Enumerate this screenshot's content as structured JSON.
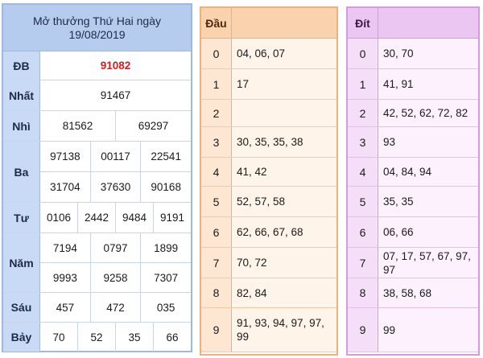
{
  "results": {
    "title_line1": "Mở thưởng Thứ Hai ngày",
    "title_line2": "19/08/2019",
    "prizes": [
      {
        "label": "ĐB",
        "rows": [
          [
            "91082"
          ]
        ],
        "special": true
      },
      {
        "label": "Nhất",
        "rows": [
          [
            "91467"
          ]
        ]
      },
      {
        "label": "Nhì",
        "rows": [
          [
            "81562",
            "69297"
          ]
        ]
      },
      {
        "label": "Ba",
        "rows": [
          [
            "97138",
            "00117",
            "22541"
          ],
          [
            "31704",
            "37630",
            "90168"
          ]
        ]
      },
      {
        "label": "Tư",
        "rows": [
          [
            "0106",
            "2442",
            "9484",
            "9191"
          ]
        ]
      },
      {
        "label": "Năm",
        "rows": [
          [
            "7194",
            "0797",
            "1899"
          ],
          [
            "9993",
            "9258",
            "7307"
          ]
        ]
      },
      {
        "label": "Sáu",
        "rows": [
          [
            "457",
            "472",
            "035"
          ]
        ]
      },
      {
        "label": "Bảy",
        "rows": [
          [
            "70",
            "52",
            "35",
            "66"
          ]
        ]
      }
    ]
  },
  "dau": {
    "header": "Đầu",
    "rows": [
      {
        "key": "0",
        "value": "04, 06, 07"
      },
      {
        "key": "1",
        "value": "17"
      },
      {
        "key": "2",
        "value": ""
      },
      {
        "key": "3",
        "value": "30, 35, 35, 38"
      },
      {
        "key": "4",
        "value": "41, 42"
      },
      {
        "key": "5",
        "value": "52, 57, 58"
      },
      {
        "key": "6",
        "value": "62, 66, 67, 68"
      },
      {
        "key": "7",
        "value": "70, 72"
      },
      {
        "key": "8",
        "value": "82, 84"
      },
      {
        "key": "9",
        "value": "91, 93, 94, 97, 97, 99"
      }
    ]
  },
  "dit": {
    "header": "Đít",
    "rows": [
      {
        "key": "0",
        "value": "30, 70"
      },
      {
        "key": "1",
        "value": "41, 91"
      },
      {
        "key": "2",
        "value": "42, 52, 62, 72, 82"
      },
      {
        "key": "3",
        "value": "93"
      },
      {
        "key": "4",
        "value": "04, 84, 94"
      },
      {
        "key": "5",
        "value": "35, 35"
      },
      {
        "key": "6",
        "value": "06, 66"
      },
      {
        "key": "7",
        "value": "07, 17, 57, 67, 97, 97"
      },
      {
        "key": "8",
        "value": "38, 58, 68"
      },
      {
        "key": "9",
        "value": "99"
      }
    ]
  },
  "colors": {
    "special_prize": "#e0161b",
    "results_header": "#b6ccef",
    "dau_header": "#fbd2ae",
    "dit_header": "#ecc6f3"
  }
}
